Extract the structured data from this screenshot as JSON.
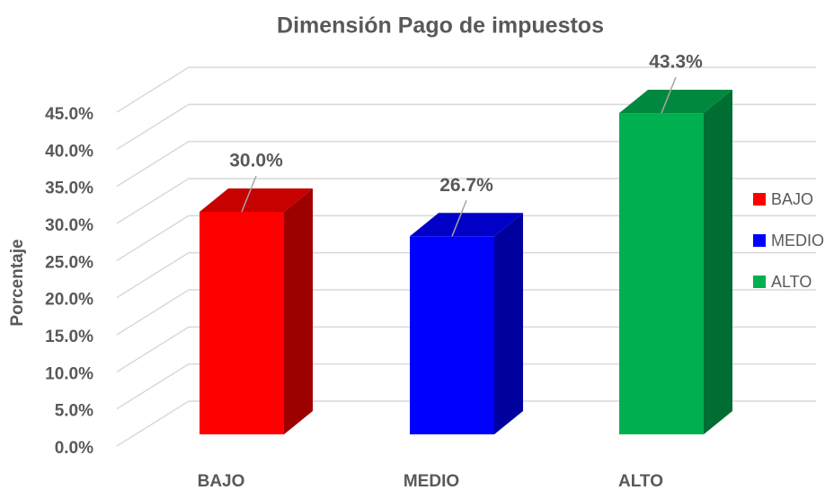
{
  "chart_data": {
    "type": "bar3d",
    "title": "Dimensión Pago de impuestos",
    "y_label": "Porcentaje",
    "categories": [
      "BAJO",
      "MEDIO",
      "ALTO"
    ],
    "values": [
      30.0,
      26.7,
      43.3
    ],
    "value_labels": [
      "30.0%",
      "26.7%",
      "43.3%"
    ],
    "colors": [
      "#ff0000",
      "#0000ff",
      "#00b050"
    ],
    "ylim": [
      0,
      45
    ],
    "yticks": [
      {
        "value": 0,
        "label": "0.0%"
      },
      {
        "value": 5,
        "label": "5.0%"
      },
      {
        "value": 10,
        "label": "10.0%"
      },
      {
        "value": 15,
        "label": "15.0%"
      },
      {
        "value": 20,
        "label": "20.0%"
      },
      {
        "value": 25,
        "label": "25.0%"
      },
      {
        "value": 30,
        "label": "30.0%"
      },
      {
        "value": 35,
        "label": "35.0%"
      },
      {
        "value": 40,
        "label": "40.0%"
      },
      {
        "value": 45,
        "label": "45.0%"
      }
    ],
    "grid": true,
    "legend": "right"
  }
}
